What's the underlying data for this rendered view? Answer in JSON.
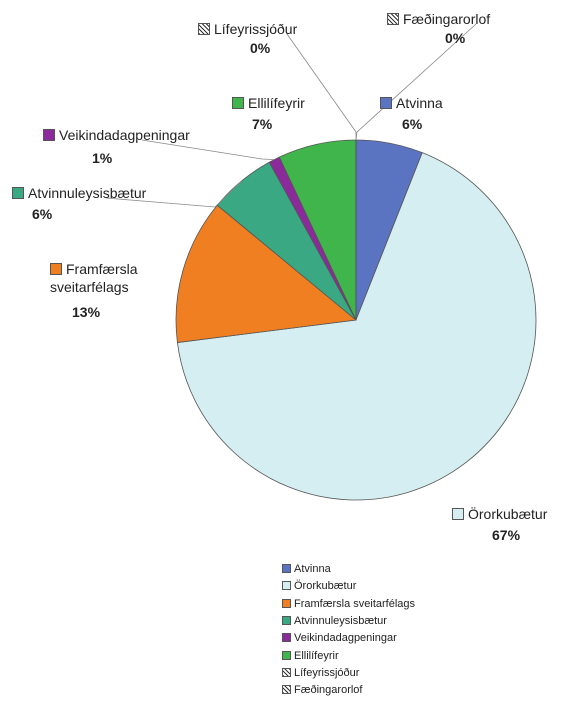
{
  "chart_data": {
    "type": "pie",
    "categories": [
      "Atvinna",
      "Örorkubætur",
      "Framfærsla sveitarfélags",
      "Atvinnuleysisbætur",
      "Veikindadagpeningar",
      "Ellilífeyrir",
      "Lífeyrissjóður",
      "Fæðingarorlof"
    ],
    "values": [
      6,
      67,
      13,
      6,
      1,
      7,
      0,
      0
    ],
    "value_labels": [
      "6%",
      "67%",
      "13%",
      "6%",
      "1%",
      "7%",
      "0%",
      "0%"
    ],
    "colors": [
      "#5b74c2",
      "#d5eef1",
      "#f07f22",
      "#3aa882",
      "#8b2a9b",
      "#3fb54b",
      "hatch-a",
      "hatch-b"
    ],
    "legend": "bottom"
  }
}
